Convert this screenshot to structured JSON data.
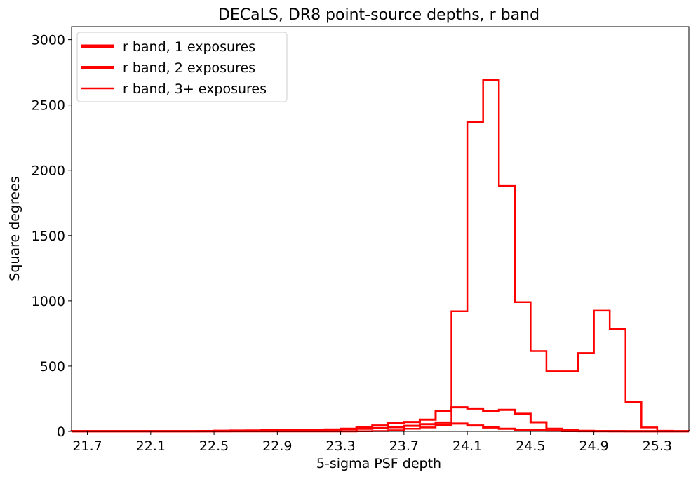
{
  "chart_data": {
    "type": "step-histogram",
    "title": "DECaLS, DR8 point-source depths, r band",
    "xlabel": "5-sigma PSF depth",
    "ylabel": "Square degrees",
    "xlim": [
      21.6,
      25.5
    ],
    "ylim": [
      0,
      3100
    ],
    "xticks": [
      21.7,
      22.1,
      22.5,
      22.9,
      23.3,
      23.7,
      24.1,
      24.5,
      24.9,
      25.3
    ],
    "xtick_labels": [
      "21.7",
      "22.1",
      "22.5",
      "22.9",
      "23.3",
      "23.7",
      "24.1",
      "24.5",
      "24.9",
      "25.3"
    ],
    "yticks": [
      0,
      500,
      1000,
      1500,
      2000,
      2500,
      3000
    ],
    "ytick_labels": [
      "0",
      "500",
      "1000",
      "1500",
      "2000",
      "2500",
      "3000"
    ],
    "bin_edges": [
      21.6,
      21.7,
      21.8,
      21.9,
      22.0,
      22.1,
      22.2,
      22.3,
      22.4,
      22.5,
      22.6,
      22.7,
      22.8,
      22.9,
      23.0,
      23.1,
      23.2,
      23.3,
      23.4,
      23.5,
      23.6,
      23.7,
      23.8,
      23.9,
      24.0,
      24.1,
      24.2,
      24.3,
      24.4,
      24.5,
      24.6,
      24.7,
      24.8,
      24.9,
      25.0,
      25.1,
      25.2,
      25.3,
      25.4,
      25.5
    ],
    "color": "#ff0000",
    "legend_position": "upper-left",
    "series": [
      {
        "name": "r band, 1 exposures",
        "linewidth": 3,
        "values": [
          2,
          2,
          2,
          2,
          2,
          2,
          2,
          2,
          3,
          5,
          6,
          7,
          8,
          10,
          12,
          13,
          14,
          16,
          20,
          25,
          32,
          42,
          55,
          68,
          60,
          45,
          30,
          20,
          13,
          8,
          5,
          3,
          2,
          2,
          2,
          1,
          1,
          1,
          1
        ]
      },
      {
        "name": "r band, 2 exposures",
        "linewidth": 3,
        "values": [
          1,
          1,
          1,
          1,
          1,
          1,
          1,
          1,
          1,
          2,
          3,
          4,
          5,
          7,
          9,
          11,
          14,
          20,
          30,
          45,
          62,
          72,
          90,
          155,
          185,
          175,
          155,
          165,
          135,
          70,
          20,
          8,
          4,
          2,
          1,
          1,
          1,
          1,
          1
        ]
      },
      {
        "name": "r band, 3+ exposures",
        "linewidth": 2.5,
        "values": [
          0,
          0,
          0,
          0,
          0,
          0,
          0,
          0,
          0,
          0,
          0,
          0,
          0,
          0,
          0,
          0,
          0,
          0,
          1,
          3,
          8,
          20,
          30,
          50,
          920,
          2370,
          2690,
          1880,
          990,
          615,
          460,
          460,
          600,
          925,
          785,
          225,
          30,
          5,
          2
        ]
      }
    ]
  }
}
